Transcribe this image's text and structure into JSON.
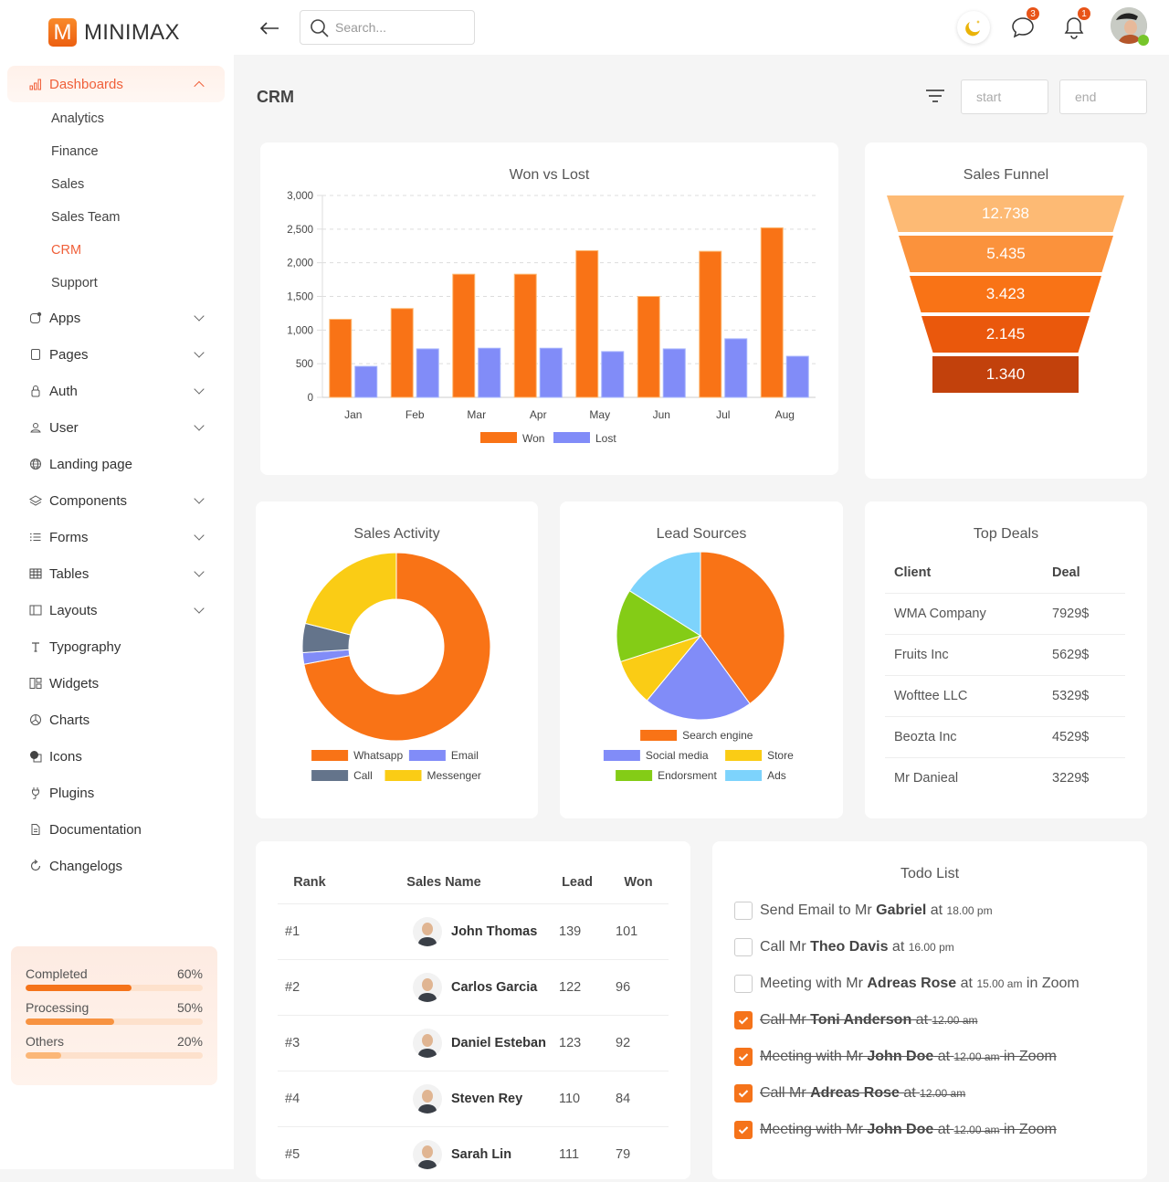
{
  "brand": {
    "logo_letter": "M",
    "name": "MINIMAX"
  },
  "sidebar": {
    "dashboards": {
      "label": "Dashboards",
      "expanded": true,
      "children": [
        "Analytics",
        "Finance",
        "Sales",
        "Sales Team",
        "CRM",
        "Support"
      ],
      "current": "CRM"
    },
    "items": [
      {
        "label": "Apps",
        "icon": "apps-icon",
        "chevron": true
      },
      {
        "label": "Pages",
        "icon": "page-icon",
        "chevron": true
      },
      {
        "label": "Auth",
        "icon": "lock-icon",
        "chevron": true
      },
      {
        "label": "User",
        "icon": "user-icon",
        "chevron": true
      },
      {
        "label": "Landing page",
        "icon": "globe-icon",
        "chevron": false
      },
      {
        "label": "Components",
        "icon": "layers-icon",
        "chevron": true
      },
      {
        "label": "Forms",
        "icon": "list-icon",
        "chevron": true
      },
      {
        "label": "Tables",
        "icon": "table-icon",
        "chevron": true
      },
      {
        "label": "Layouts",
        "icon": "layout-icon",
        "chevron": true
      },
      {
        "label": "Typography",
        "icon": "type-icon",
        "chevron": false
      },
      {
        "label": "Widgets",
        "icon": "widgets-icon",
        "chevron": false
      },
      {
        "label": "Charts",
        "icon": "pie-chart-icon",
        "chevron": false
      },
      {
        "label": "Icons",
        "icon": "shapes-icon",
        "chevron": false
      },
      {
        "label": "Plugins",
        "icon": "plug-icon",
        "chevron": false
      },
      {
        "label": "Documentation",
        "icon": "document-icon",
        "chevron": false
      },
      {
        "label": "Changelogs",
        "icon": "refresh-icon",
        "chevron": false
      }
    ],
    "progress": [
      {
        "label": "Completed",
        "value": "60%",
        "pct": 60,
        "color": "#f5731a"
      },
      {
        "label": "Processing",
        "value": "50%",
        "pct": 50,
        "color": "#f79341"
      },
      {
        "label": "Others",
        "value": "20%",
        "pct": 20,
        "color": "#fbb778"
      }
    ]
  },
  "topbar": {
    "search_placeholder": "Search...",
    "messages_badge": "3",
    "notifications_badge": "1"
  },
  "page": {
    "title": "CRM",
    "start_placeholder": "start",
    "end_placeholder": "end"
  },
  "chart_data": [
    {
      "type": "bar",
      "title": "Won vs Lost",
      "categories": [
        "Jan",
        "Feb",
        "Mar",
        "Apr",
        "May",
        "Jun",
        "Jul",
        "Aug"
      ],
      "series": [
        {
          "name": "Won",
          "color": "#f97316",
          "values": [
            1160,
            1320,
            1830,
            1830,
            2180,
            1500,
            2170,
            2520
          ]
        },
        {
          "name": "Lost",
          "color": "#818cf8",
          "values": [
            460,
            720,
            730,
            730,
            680,
            720,
            870,
            610
          ]
        }
      ],
      "yticks": [
        "0",
        "500",
        "1,000",
        "1,500",
        "2,000",
        "2,500",
        "3,000"
      ],
      "ylim": [
        0,
        3000
      ],
      "grid": true,
      "legend": "bottom"
    },
    {
      "type": "funnel",
      "title": "Sales Funnel",
      "values": [
        "12.738",
        "5.435",
        "3.423",
        "2.145",
        "1.340"
      ],
      "colors": [
        "#fdba74",
        "#fb923c",
        "#f97316",
        "#ea580c",
        "#c2410c"
      ]
    },
    {
      "type": "doughnut",
      "title": "Sales Activity",
      "labels": [
        "Whatsapp",
        "Email",
        "Call",
        "Messenger"
      ],
      "values": [
        72,
        2,
        5,
        21
      ],
      "colors": [
        "#f97316",
        "#818cf8",
        "#64748b",
        "#facc15"
      ],
      "legend": "bottom"
    },
    {
      "type": "pie",
      "title": "Lead Sources",
      "labels": [
        "Search engine",
        "Social media",
        "Store",
        "Endorsment",
        "Ads"
      ],
      "values": [
        40,
        21,
        9,
        14,
        16
      ],
      "colors": [
        "#f97316",
        "#818cf8",
        "#facc15",
        "#84cc16",
        "#7dd3fc"
      ],
      "legend": "bottom"
    }
  ],
  "top_deals": {
    "title": "Top Deals",
    "columns": [
      "Client",
      "Deal"
    ],
    "rows": [
      [
        "WMA Company",
        "7929$"
      ],
      [
        "Fruits Inc",
        "5629$"
      ],
      [
        "Wofttee LLC",
        "5329$"
      ],
      [
        "Beozta Inc",
        "4529$"
      ],
      [
        "Mr Danieal",
        "3229$"
      ]
    ]
  },
  "ranking": {
    "columns": [
      "Rank",
      "Sales Name",
      "Lead",
      "Won"
    ],
    "rows": [
      {
        "rank": "#1",
        "name": "John Thomas",
        "lead": "139",
        "won": "101"
      },
      {
        "rank": "#2",
        "name": "Carlos Garcia",
        "lead": "122",
        "won": "96"
      },
      {
        "rank": "#3",
        "name": "Daniel Esteban",
        "lead": "123",
        "won": "92"
      },
      {
        "rank": "#4",
        "name": "Steven Rey",
        "lead": "110",
        "won": "84"
      },
      {
        "rank": "#5",
        "name": "Sarah Lin",
        "lead": "111",
        "won": "79"
      }
    ]
  },
  "todo": {
    "title": "Todo List",
    "items": [
      {
        "pre": "Send Email to Mr ",
        "name": "Gabriel",
        "mid": " at ",
        "time": "18.00 pm",
        "post": "",
        "done": false
      },
      {
        "pre": "Call Mr ",
        "name": "Theo Davis",
        "mid": " at ",
        "time": "16.00 pm",
        "post": "",
        "done": false
      },
      {
        "pre": "Meeting with Mr ",
        "name": "Adreas Rose",
        "mid": " at ",
        "time": "15.00 am",
        "post": " in Zoom",
        "done": false
      },
      {
        "pre": "Call Mr ",
        "name": "Toni Anderson",
        "mid": " at ",
        "time": "12.00 am",
        "post": "",
        "done": true
      },
      {
        "pre": "Meeting with Mr ",
        "name": "John Doe",
        "mid": " at ",
        "time": "12.00 am",
        "post": " in Zoom",
        "done": true
      },
      {
        "pre": "Call Mr ",
        "name": "Adreas Rose",
        "mid": " at ",
        "time": "12.00 am",
        "post": "",
        "done": true
      },
      {
        "pre": "Meeting with Mr ",
        "name": "John Doe",
        "mid": " at ",
        "time": "12.00 am",
        "post": " in Zoom",
        "done": true
      }
    ]
  }
}
